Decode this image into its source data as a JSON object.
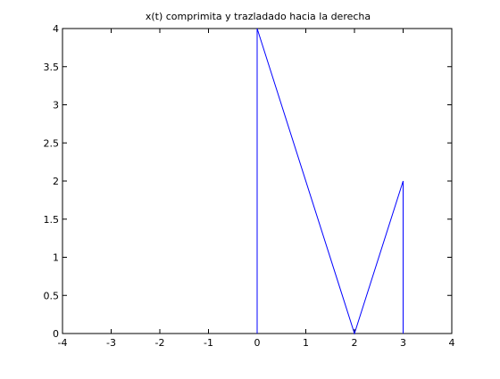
{
  "chart_data": {
    "type": "line",
    "title": "x(t) comprimita y trazladado hacia la derecha",
    "xlabel": "",
    "ylabel": "",
    "xlim": [
      -4,
      4
    ],
    "ylim": [
      0,
      4
    ],
    "x_ticks": [
      -4,
      -3,
      -2,
      -1,
      0,
      1,
      2,
      3,
      4
    ],
    "x_tick_labels": [
      "-4",
      "-3",
      "-2",
      "-1",
      "0",
      "1",
      "2",
      "3",
      "4"
    ],
    "y_ticks": [
      0,
      0.5,
      1,
      1.5,
      2,
      2.5,
      3,
      3.5,
      4
    ],
    "y_tick_labels": [
      "0",
      "0.5",
      "1",
      "1.5",
      "2",
      "2.5",
      "3",
      "3.5",
      "4"
    ],
    "grid": false,
    "series": [
      {
        "color": "#0000ff",
        "x": [
          0,
          0,
          2,
          3,
          3
        ],
        "y": [
          0,
          4,
          0,
          2,
          0
        ]
      }
    ]
  }
}
